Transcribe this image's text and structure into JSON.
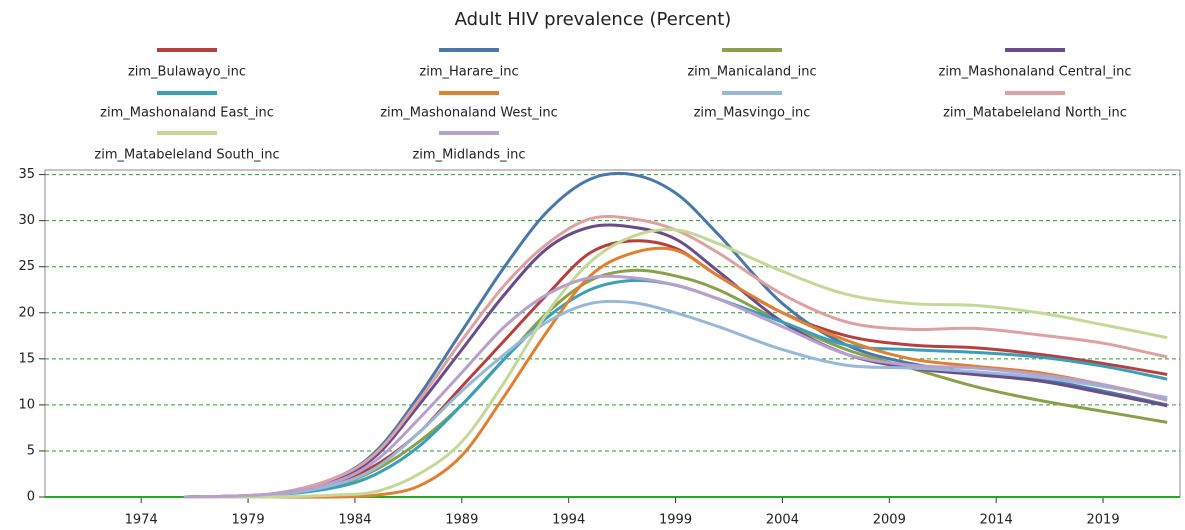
{
  "chart_data": {
    "type": "line",
    "title": "Adult HIV prevalence (Percent)",
    "x": [
      1976,
      1980,
      1983,
      1985,
      1987,
      1989,
      1991,
      1993,
      1995,
      1997,
      1999,
      2001,
      2004,
      2007,
      2010,
      2013,
      2016,
      2019,
      2022
    ],
    "series": [
      {
        "name": "zim_Bulawayo_inc",
        "color": "#b5403f",
        "values": [
          0,
          0.3,
          1.5,
          3.5,
          7,
          12,
          17,
          22,
          26.5,
          27.8,
          27,
          24,
          20,
          17.5,
          16.5,
          16.2,
          15.5,
          14.5,
          13.3
        ]
      },
      {
        "name": "zim_Harare_inc",
        "color": "#4a78a8",
        "values": [
          0,
          0.3,
          2,
          5,
          11,
          18,
          25,
          31,
          34.5,
          35,
          33,
          28.5,
          21,
          16.5,
          14.5,
          13.5,
          12.8,
          11.5,
          10
        ]
      },
      {
        "name": "zim_Manicaland_inc",
        "color": "#8aa04a",
        "values": [
          0,
          0.2,
          1.2,
          3,
          6,
          10,
          15,
          20,
          23.5,
          24.6,
          24,
          22.5,
          19,
          16,
          14,
          12,
          10.5,
          9.3,
          8.1
        ]
      },
      {
        "name": "zim_Mashonaland Central_inc",
        "color": "#6b4c8a",
        "values": [
          0,
          0.3,
          1.8,
          4.5,
          10,
          16,
          22,
          27,
          29.3,
          29.3,
          28,
          24.5,
          19,
          15.5,
          14,
          13.3,
          12.6,
          11.3,
          9.9
        ]
      },
      {
        "name": "zim_Mashonaland East_inc",
        "color": "#3a9fb8",
        "values": [
          0,
          0.2,
          1,
          2.5,
          5.5,
          10,
          15,
          19.5,
          22.5,
          23.5,
          23,
          21.5,
          19,
          16.5,
          16,
          15.7,
          15.2,
          14.2,
          12.8
        ]
      },
      {
        "name": "zim_Mashonaland West_inc",
        "color": "#e08030",
        "values": [
          0,
          0,
          0,
          0.2,
          1.2,
          4.5,
          11,
          18,
          24,
          26.5,
          26.8,
          24,
          20,
          17,
          15,
          14.2,
          13.5,
          12.2,
          10.7
        ]
      },
      {
        "name": "zim_Masvingo_inc",
        "color": "#98b8d8",
        "values": [
          0,
          0.2,
          1.3,
          3.2,
          7,
          11.5,
          15.5,
          19,
          21,
          21.1,
          20,
          18.5,
          16,
          14.3,
          14,
          13.6,
          13,
          12,
          10.8
        ]
      },
      {
        "name": "zim_Matabeleland North_inc",
        "color": "#dea0a0",
        "values": [
          0,
          0.3,
          2,
          4.8,
          10.5,
          17,
          23,
          27.5,
          30.2,
          30.2,
          29,
          26.5,
          22,
          19,
          18.2,
          18.3,
          17.6,
          16.7,
          15.2
        ]
      },
      {
        "name": "zim_Matabeleland South_inc",
        "color": "#c4d898",
        "values": [
          0,
          0,
          0.2,
          0.6,
          2.5,
          6,
          12.5,
          20,
          25.5,
          28.3,
          29,
          27.5,
          24.5,
          22,
          21,
          20.8,
          20,
          18.7,
          17.3
        ]
      },
      {
        "name": "zim_Midlands_inc",
        "color": "#b8a0cc",
        "values": [
          0,
          0.3,
          1.6,
          4,
          8.5,
          13.5,
          18.5,
          22,
          23.8,
          23.8,
          23,
          21.5,
          18.5,
          15.5,
          14.3,
          14,
          13.3,
          12.2,
          10.5
        ]
      }
    ],
    "xlim": [
      1969.5,
      2022.6
    ],
    "ylim": [
      0,
      35.5
    ],
    "xticks": [
      1974,
      1979,
      1984,
      1989,
      1994,
      1999,
      2004,
      2009,
      2014,
      2019
    ],
    "yticks": [
      0,
      5,
      10,
      15,
      20,
      25,
      30,
      35
    ],
    "grid": true
  }
}
